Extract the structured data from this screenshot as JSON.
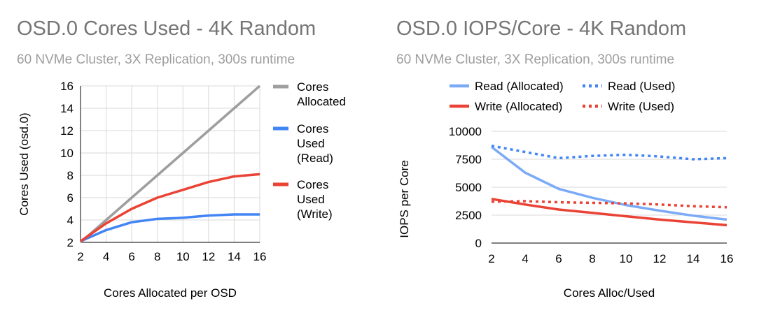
{
  "chart_data": [
    {
      "type": "line",
      "title": "OSD.0 Cores Used - 4K Random",
      "subtitle": "60 NVMe Cluster, 3X Replication, 300s runtime",
      "xlabel": "Cores Allocated per OSD",
      "ylabel": "Cores Used (osd.0)",
      "x": [
        2,
        4,
        6,
        8,
        10,
        12,
        14,
        16
      ],
      "xlim": [
        2,
        16
      ],
      "ylim": [
        2,
        16
      ],
      "xticks": [
        2,
        4,
        6,
        8,
        10,
        12,
        14,
        16
      ],
      "yticks": [
        2,
        4,
        6,
        8,
        10,
        12,
        14,
        16
      ],
      "grid": true,
      "legend_position": "right",
      "series": [
        {
          "name": "Cores Allocated",
          "legend_lines": [
            "Cores",
            "Allocated"
          ],
          "color": "#9e9e9e",
          "style": "solid",
          "values": [
            2,
            4,
            6,
            8,
            10,
            12,
            14,
            16
          ]
        },
        {
          "name": "Cores Used (Read)",
          "legend_lines": [
            "Cores",
            "Used",
            "(Read)"
          ],
          "color": "#4285f4",
          "style": "solid",
          "values": [
            2.1,
            3.1,
            3.8,
            4.1,
            4.2,
            4.4,
            4.5,
            4.5
          ]
        },
        {
          "name": "Cores Used (Write)",
          "legend_lines": [
            "Cores",
            "Used",
            "(Write)"
          ],
          "color": "#ea4335",
          "style": "solid",
          "values": [
            2.1,
            3.7,
            5.0,
            6.0,
            6.7,
            7.4,
            7.9,
            8.1
          ]
        }
      ]
    },
    {
      "type": "line",
      "title": "OSD.0 IOPS/Core - 4K Random",
      "subtitle": "60 NVMe Cluster, 3X Replication, 300s runtime",
      "xlabel": "Cores Alloc/Used",
      "ylabel": "IOPS per Core",
      "x": [
        2,
        4,
        6,
        8,
        10,
        12,
        14,
        16
      ],
      "xlim": [
        2,
        16
      ],
      "ylim": [
        0,
        10000
      ],
      "xticks": [
        2,
        4,
        6,
        8,
        10,
        12,
        14,
        16
      ],
      "yticks": [
        0,
        2500,
        5000,
        7500,
        10000
      ],
      "grid": true,
      "legend_position": "top",
      "series": [
        {
          "name": "Read (Allocated)",
          "color": "#7baaf7",
          "style": "solid",
          "values": [
            8600,
            6300,
            4850,
            4050,
            3400,
            2900,
            2450,
            2100
          ]
        },
        {
          "name": "Read (Used)",
          "color": "#4285f4",
          "style": "dotted",
          "values": [
            8700,
            8150,
            7600,
            7800,
            7900,
            7750,
            7500,
            7600
          ]
        },
        {
          "name": "Write (Allocated)",
          "color": "#ea4335",
          "style": "solid",
          "values": [
            3950,
            3450,
            3000,
            2700,
            2400,
            2100,
            1850,
            1600
          ]
        },
        {
          "name": "Write (Used)",
          "color": "#ea4335",
          "style": "dotted",
          "values": [
            3700,
            3750,
            3650,
            3600,
            3550,
            3450,
            3300,
            3200
          ]
        }
      ]
    }
  ]
}
